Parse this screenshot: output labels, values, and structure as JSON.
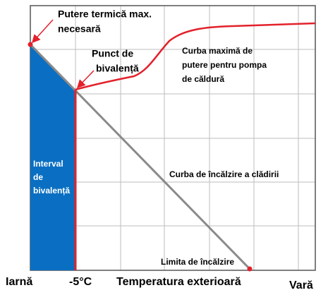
{
  "labels": {
    "max_heat": [
      "Putere termică max.",
      "necesară"
    ],
    "bivalence_point": [
      "Punct de",
      "bivalență"
    ],
    "heat_pump_curve": [
      "Curba maximă de",
      "putere pentru pompa",
      "de căldură"
    ],
    "bivalence_interval": [
      "Interval",
      "de",
      "bivalență"
    ],
    "building_curve": "Curba de încălzire a clădirii",
    "heating_limit": "Limita de încălzire"
  },
  "axis": {
    "left": "Iarnă",
    "point": "-5°C",
    "title": "Temperatura exterioară",
    "right": "Vară"
  }
}
